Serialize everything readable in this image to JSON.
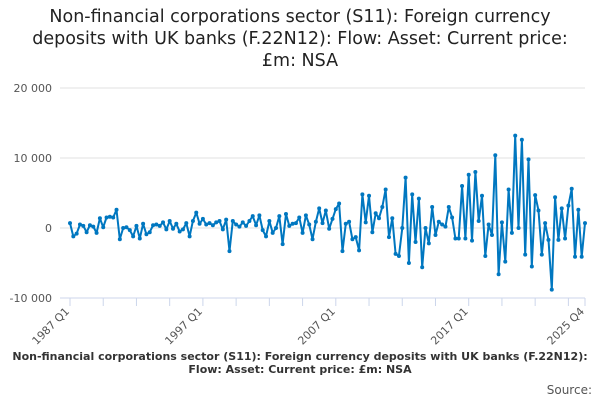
{
  "chart_data": {
    "type": "line",
    "title": "Non-financial corporations sector (S11): Foreign currency deposits with UK banks (F.22N12): Flow: Asset: Current price: £m: NSA",
    "footer_title": "Non-financial corporations sector (S11): Foreign currency deposits with UK banks (F.22N12): Flow: Asset: Current price: £m: NSA",
    "source_label": "Source:",
    "xlabel": "",
    "ylabel": "",
    "start_year": 1987,
    "start_quarter": 1,
    "ylim": [
      -10000,
      20000
    ],
    "yticks": [
      20000,
      10000,
      0,
      -10000
    ],
    "ytick_labels": [
      "20 000",
      "10 000",
      "0",
      "-10 000"
    ],
    "xtick_labels": [
      "1987 Q1",
      "1997 Q1",
      "2007 Q1",
      "2017 Q1",
      "2025 Q4"
    ],
    "xtick_label_index": [
      0,
      40,
      80,
      120,
      155
    ],
    "grid": true,
    "line_color": "#0077c0",
    "series": [
      {
        "name": "Flow: Asset",
        "values": [
          700,
          -1200,
          -800,
          500,
          300,
          -600,
          400,
          200,
          -700,
          1400,
          100,
          1500,
          1600,
          1500,
          2600,
          -1600,
          0,
          100,
          -300,
          -1200,
          300,
          -1500,
          600,
          -900,
          -600,
          400,
          500,
          300,
          800,
          -200,
          1000,
          -100,
          600,
          -500,
          -200,
          700,
          -1200,
          1000,
          2200,
          600,
          1300,
          500,
          700,
          400,
          800,
          1000,
          -200,
          1200,
          -3300,
          1000,
          500,
          200,
          800,
          300,
          1000,
          1700,
          400,
          1800,
          -300,
          -1200,
          1000,
          -700,
          0,
          1700,
          -2300,
          2000,
          300,
          600,
          700,
          1500,
          -700,
          1800,
          500,
          -1600,
          900,
          2800,
          700,
          2500,
          -100,
          1300,
          2700,
          3500,
          -3300,
          600,
          900,
          -1600,
          -1300,
          -3200,
          4800,
          800,
          4600,
          -600,
          2100,
          1400,
          3000,
          5500,
          -1300,
          1400,
          -3700,
          -4000,
          0,
          7200,
          -5000,
          4800,
          -2000,
          4200,
          -5600,
          0,
          -2200,
          3000,
          -1000,
          900,
          500,
          200,
          3000,
          1500,
          -1500,
          -1500,
          6000,
          -1500,
          7600,
          -1800,
          8000,
          1000,
          4600,
          -4000,
          500,
          -1000,
          10400,
          -6600,
          800,
          -4800,
          5500,
          -700,
          13200,
          0,
          12600,
          -3800,
          9800,
          -5500,
          4700,
          2500,
          -3800,
          700,
          -1700,
          -8800,
          4400,
          -1700,
          2800,
          -1500,
          3200,
          5600,
          -4100,
          2600,
          -4100,
          700
        ]
      }
    ]
  }
}
